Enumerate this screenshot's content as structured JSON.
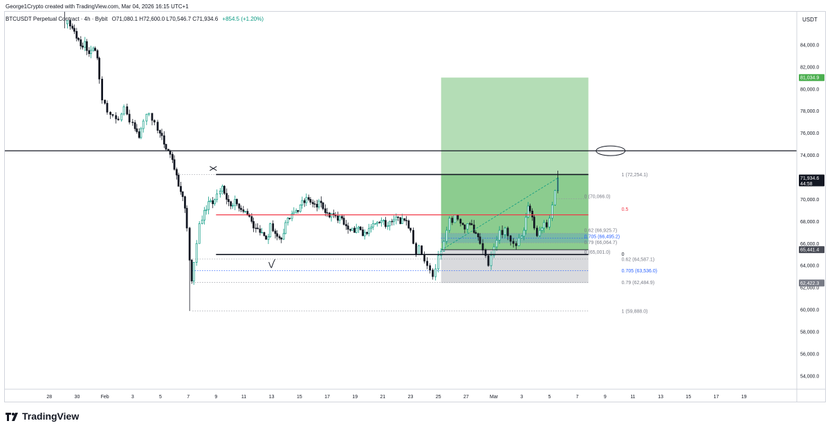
{
  "header": {
    "caption": "George1Crypto created with TradingView.com, Mar 04, 2026 16:15 UTC+1",
    "symbol": "BTCUSDT Perpetual Contract · 4h · Bybit",
    "ohlc": "O71,080.1 H72,600.0 L70,546.7 C71,934.6",
    "change": "+854.5 (+1.20%)",
    "change_color": "#089981"
  },
  "brand": {
    "name": "TradingView",
    "logo_icon": "tradingview-logo-icon"
  },
  "chart_data": {
    "type": "candlestick",
    "title": "",
    "timeframe": "4h",
    "currency_label": "USDT",
    "ylim": [
      52800,
      87000
    ],
    "xlim": [
      -3.2,
      53.8
    ],
    "x_unit": "days since Jan 28, 2026",
    "y_ticks": [
      54000,
      56000,
      58000,
      60000,
      62000,
      64000,
      66000,
      68000,
      70000,
      72000,
      74000,
      76000,
      78000,
      80000,
      82000,
      84000
    ],
    "x_ticks": [
      {
        "x": 0,
        "label": "28"
      },
      {
        "x": 2,
        "label": "30"
      },
      {
        "x": 4,
        "label": "Feb"
      },
      {
        "x": 6,
        "label": "3"
      },
      {
        "x": 8,
        "label": "5"
      },
      {
        "x": 10,
        "label": "7"
      },
      {
        "x": 12,
        "label": "9"
      },
      {
        "x": 14,
        "label": "11"
      },
      {
        "x": 16,
        "label": "13"
      },
      {
        "x": 18,
        "label": "15"
      },
      {
        "x": 20,
        "label": "17"
      },
      {
        "x": 22,
        "label": "19"
      },
      {
        "x": 24,
        "label": "21"
      },
      {
        "x": 26,
        "label": "23"
      },
      {
        "x": 28,
        "label": "25"
      },
      {
        "x": 30,
        "label": "27"
      },
      {
        "x": 32,
        "label": "Mar"
      },
      {
        "x": 34,
        "label": "3"
      },
      {
        "x": 36,
        "label": "5"
      },
      {
        "x": 38,
        "label": "7"
      },
      {
        "x": 40,
        "label": "9"
      },
      {
        "x": 42,
        "label": "11"
      },
      {
        "x": 44,
        "label": "13"
      },
      {
        "x": 46,
        "label": "15"
      },
      {
        "x": 48,
        "label": "17"
      },
      {
        "x": 50,
        "label": "19"
      }
    ],
    "colors": {
      "up": "#089981",
      "down": "#131722",
      "bg": "#ffffff",
      "grid": "#f0f3fa",
      "axis_text": "#131722"
    },
    "price_path": [
      [
        1.3,
        86200
      ],
      [
        1.5,
        85500
      ],
      [
        1.8,
        84600
      ],
      [
        2.1,
        83900
      ],
      [
        2.4,
        84300
      ],
      [
        2.7,
        83200
      ],
      [
        3.0,
        83700
      ],
      [
        3.3,
        82800
      ],
      [
        3.6,
        80900
      ],
      [
        3.8,
        79000
      ],
      [
        4.0,
        77900
      ],
      [
        4.4,
        77600
      ],
      [
        4.8,
        77200
      ],
      [
        5.2,
        78400
      ],
      [
        5.6,
        77000
      ],
      [
        6.0,
        76400
      ],
      [
        6.3,
        75600
      ],
      [
        6.6,
        77100
      ],
      [
        7.0,
        77800
      ],
      [
        7.4,
        77000
      ],
      [
        7.8,
        76000
      ],
      [
        8.1,
        75000
      ],
      [
        8.4,
        74400
      ],
      [
        8.7,
        73600
      ],
      [
        9.0,
        72200
      ],
      [
        9.3,
        70700
      ],
      [
        9.6,
        69200
      ],
      [
        9.9,
        67400
      ],
      [
        10.1,
        64500
      ],
      [
        10.25,
        62600
      ],
      [
        10.4,
        64300
      ],
      [
        10.6,
        66000
      ],
      [
        10.8,
        67800
      ],
      [
        11.0,
        69000
      ],
      [
        11.3,
        69800
      ],
      [
        11.6,
        69600
      ],
      [
        11.9,
        70500
      ],
      [
        12.3,
        71200
      ],
      [
        12.6,
        70000
      ],
      [
        12.9,
        69400
      ],
      [
        13.2,
        70000
      ],
      [
        13.5,
        69200
      ],
      [
        13.8,
        68900
      ],
      [
        14.1,
        68600
      ],
      [
        14.4,
        68000
      ],
      [
        14.7,
        67400
      ],
      [
        15.0,
        67000
      ],
      [
        15.3,
        66700
      ],
      [
        15.6,
        66600
      ],
      [
        15.9,
        67800
      ],
      [
        16.1,
        66900
      ],
      [
        16.4,
        66500
      ],
      [
        16.7,
        66900
      ],
      [
        17.0,
        68300
      ],
      [
        17.3,
        68700
      ],
      [
        17.6,
        69000
      ],
      [
        17.9,
        69500
      ],
      [
        18.2,
        69700
      ],
      [
        18.5,
        70000
      ],
      [
        18.8,
        69600
      ],
      [
        19.1,
        69300
      ],
      [
        19.4,
        69700
      ],
      [
        19.7,
        68800
      ],
      [
        20.0,
        68400
      ],
      [
        20.3,
        68600
      ],
      [
        20.6,
        68100
      ],
      [
        20.9,
        68300
      ],
      [
        21.2,
        67600
      ],
      [
        21.5,
        67200
      ],
      [
        21.8,
        67000
      ],
      [
        22.1,
        67500
      ],
      [
        22.4,
        66700
      ],
      [
        22.7,
        66900
      ],
      [
        23.0,
        67500
      ],
      [
        23.3,
        67800
      ],
      [
        23.6,
        67900
      ],
      [
        23.9,
        68100
      ],
      [
        24.2,
        67600
      ],
      [
        24.5,
        68000
      ],
      [
        24.8,
        68400
      ],
      [
        25.1,
        67800
      ],
      [
        25.4,
        68100
      ],
      [
        25.7,
        67400
      ],
      [
        26.0,
        67200
      ],
      [
        26.2,
        66000
      ],
      [
        26.4,
        65000
      ],
      [
        26.6,
        65800
      ],
      [
        26.8,
        65000
      ],
      [
        27.0,
        64400
      ],
      [
        27.2,
        64000
      ],
      [
        27.4,
        63600
      ],
      [
        27.6,
        63000
      ],
      [
        27.8,
        63700
      ],
      [
        28.0,
        64900
      ],
      [
        28.2,
        65300
      ],
      [
        28.4,
        66200
      ],
      [
        28.6,
        67200
      ],
      [
        28.8,
        68300
      ],
      [
        29.0,
        67900
      ],
      [
        29.2,
        68600
      ],
      [
        29.4,
        68200
      ],
      [
        29.6,
        67700
      ],
      [
        29.9,
        67300
      ],
      [
        30.1,
        67800
      ],
      [
        30.4,
        67000
      ],
      [
        30.7,
        66600
      ],
      [
        31.0,
        66000
      ],
      [
        31.2,
        65400
      ],
      [
        31.4,
        64900
      ],
      [
        31.6,
        64000
      ],
      [
        31.8,
        64900
      ],
      [
        32.0,
        65700
      ],
      [
        32.2,
        66300
      ],
      [
        32.4,
        67200
      ],
      [
        32.6,
        66800
      ],
      [
        32.8,
        67400
      ],
      [
        33.0,
        66700
      ],
      [
        33.2,
        66200
      ],
      [
        33.4,
        66000
      ],
      [
        33.6,
        65800
      ],
      [
        33.8,
        66500
      ],
      [
        34.0,
        67200
      ],
      [
        34.3,
        69400
      ],
      [
        34.6,
        68400
      ],
      [
        34.9,
        67400
      ],
      [
        35.1,
        66700
      ],
      [
        35.3,
        67400
      ],
      [
        35.6,
        67900
      ],
      [
        35.8,
        67500
      ],
      [
        36.0,
        68300
      ],
      [
        36.2,
        69500
      ],
      [
        36.4,
        70800
      ],
      [
        36.6,
        71934.6
      ]
    ],
    "wick_extremes": [
      [
        1.1,
        87000,
        85500
      ],
      [
        10.1,
        64500,
        59888
      ],
      [
        36.6,
        72600,
        70546.7
      ]
    ],
    "horizontal_levels": [
      {
        "name": "resistance-line",
        "price": 74400,
        "x1": -3.2,
        "x2": 53.8,
        "color": "#131722",
        "width": 1.3
      },
      {
        "name": "range-high-line",
        "price": 72254.1,
        "x1": 12,
        "x2": 38.8,
        "color": "#131722",
        "width": 1.6
      },
      {
        "name": "range-mid-line",
        "price": 68600,
        "x1": 12,
        "x2": 38.8,
        "color": "#f23645",
        "width": 1.2
      },
      {
        "name": "range-low-line",
        "price": 65001,
        "x1": 12,
        "x2": 38.8,
        "color": "#131722",
        "width": 1.6
      }
    ],
    "dotted_levels": [
      {
        "price": 72254.1,
        "x1": 9.2,
        "x2": 12
      },
      {
        "price": 64587.1,
        "x1": 10.3,
        "x2": 38.8
      },
      {
        "price": 63536.0,
        "x1": 10.3,
        "x2": 38.8,
        "color": "#2962ff"
      },
      {
        "price": 62484.9,
        "x1": 10.3,
        "x2": 38.8
      },
      {
        "price": 59888.0,
        "x1": 10.3,
        "x2": 38.8
      },
      {
        "price": 70066.0,
        "x1": 36.5,
        "x2": 38.8
      },
      {
        "price": 66925.7,
        "x1": 28.2,
        "x2": 38.8
      },
      {
        "price": 66495.2,
        "x1": 28.2,
        "x2": 38.8,
        "color": "#2962ff"
      },
      {
        "price": 66064.7,
        "x1": 28.2,
        "x2": 38.8
      }
    ],
    "fib_labels": [
      {
        "price": 72254.1,
        "text": "1 (72,254.1)",
        "color": "#787b86"
      },
      {
        "price": 70066.0,
        "text": "0 (70,066.0)",
        "color": "#787b86"
      },
      {
        "price": 68600,
        "text": "0.5",
        "color": "#f23645"
      },
      {
        "price": 66925.7,
        "text": "0.62 (66,925.7)",
        "color": "#787b86"
      },
      {
        "price": 66495.2,
        "text": "0.705 (66,495.2)",
        "color": "#2962ff"
      },
      {
        "price": 66064.7,
        "text": "0.79 (66,064.7)",
        "color": "#787b86"
      },
      {
        "price": 65001,
        "text": "0 (65,001.0)",
        "color": "#787b86"
      },
      {
        "price": 65001,
        "text": "0",
        "color": "#131722",
        "offset": true
      },
      {
        "price": 64587.1,
        "text": "0.62 (64,587.1)",
        "color": "#787b86"
      },
      {
        "price": 63536.0,
        "text": "0.705 (63,536.0)",
        "color": "#2962ff"
      },
      {
        "price": 62484.9,
        "text": "0.79 (62,484.9)",
        "color": "#787b86"
      },
      {
        "price": 59888.0,
        "text": "1 (59,888.0)",
        "color": "#787b86"
      }
    ],
    "long_position": {
      "x1": 28.2,
      "x2": 38.8,
      "entry": 65441.4,
      "target": 81034.9,
      "stop": 62422.3,
      "entry_label": "65,441.4",
      "target_label": "81,034.9",
      "stop_label": "62,422.3",
      "profit_color": "#4caf50",
      "loss_color": "#787b86",
      "entry_line_color": "#131722"
    },
    "fib_shaded_zone": {
      "x1": 28.2,
      "x2": 38.8,
      "top": 66925.7,
      "bottom": 66064.7,
      "color": "#2962ff"
    },
    "trend_arrow": {
      "from": [
        28.2,
        65400
      ],
      "to": [
        36.6,
        71934.6
      ]
    },
    "current_price": {
      "label": "71,934.6",
      "countdown": "44:58",
      "color": "#131722"
    },
    "annotations": [
      {
        "type": "cross",
        "x": 11.8,
        "price": 72800
      },
      {
        "type": "check",
        "x": 16.0,
        "price": 64200
      },
      {
        "type": "ellipse",
        "x": 40.4,
        "price": 74400
      }
    ]
  }
}
